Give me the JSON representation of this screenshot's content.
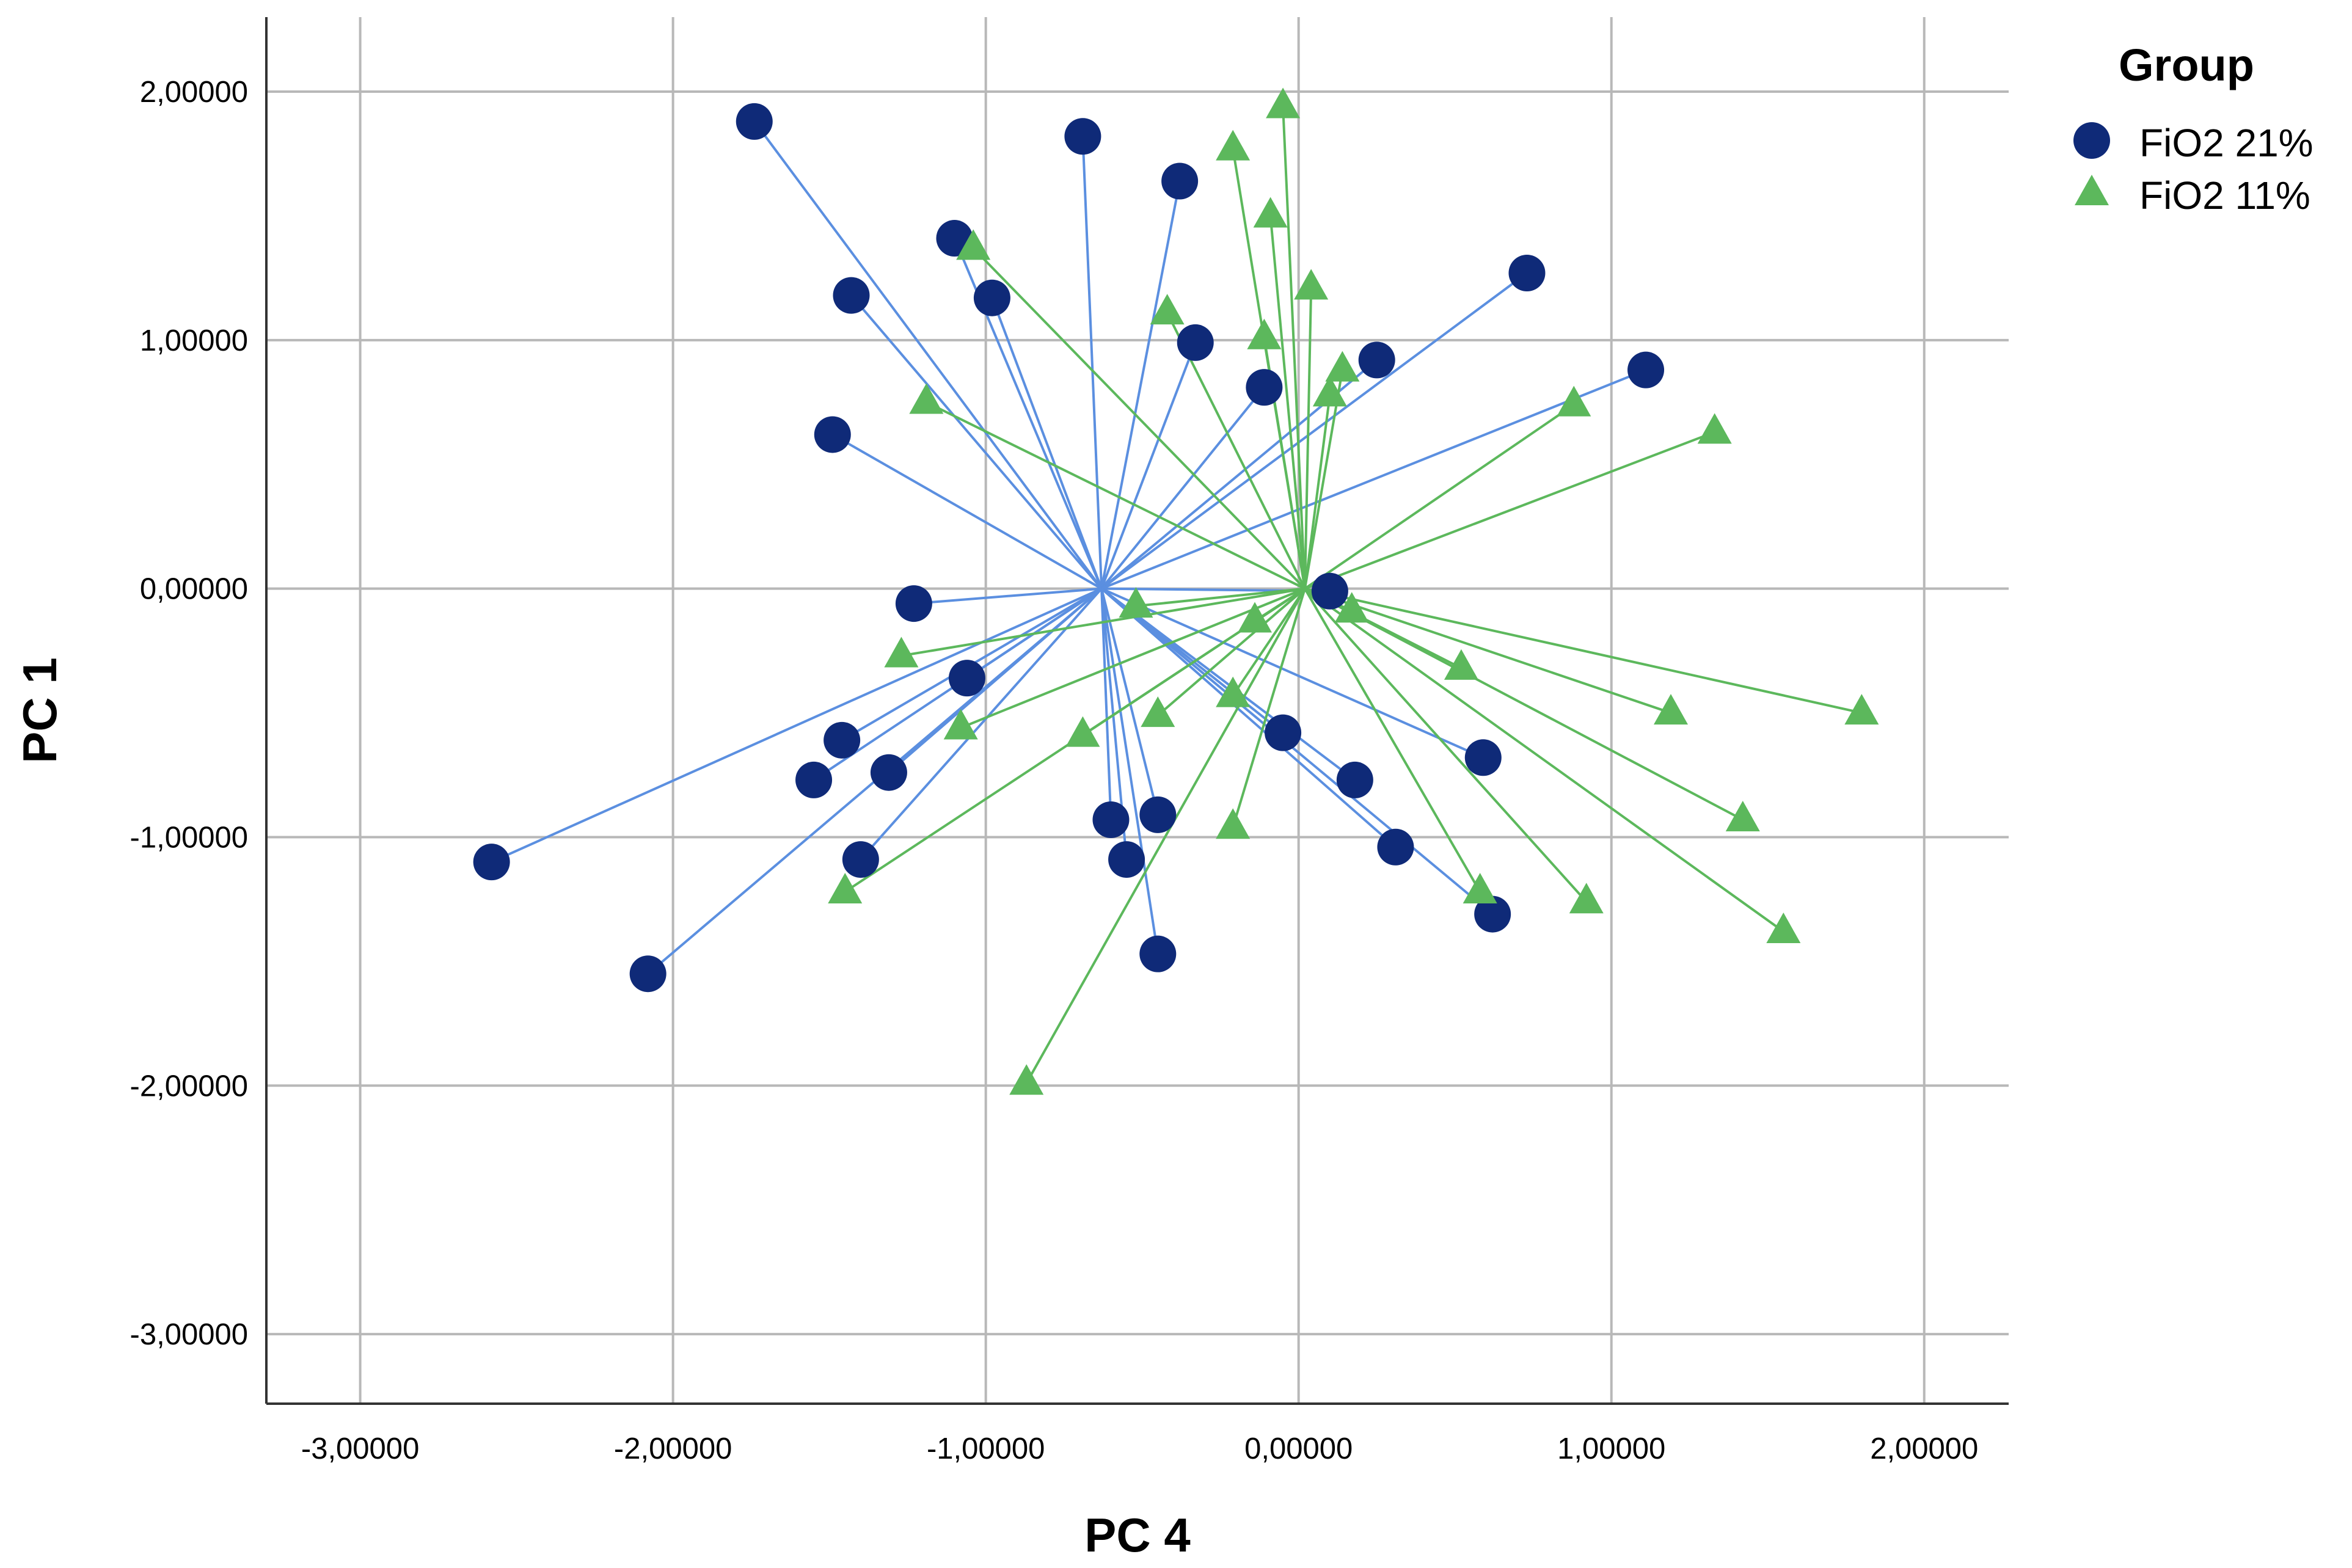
{
  "chart_data": {
    "type": "scatter",
    "xlabel": "PC 4",
    "ylabel": "PC 1",
    "xlim": [
      -3.3,
      2.27
    ],
    "ylim": [
      -3.28,
      2.3
    ],
    "xticks": [
      -3,
      -2,
      -1,
      0,
      1,
      2
    ],
    "yticks": [
      -3,
      -2,
      -1,
      0,
      1,
      2
    ],
    "xtick_labels": [
      "-3,00000",
      "-2,00000",
      "-1,00000",
      "0,00000",
      "1,00000",
      "2,00000"
    ],
    "ytick_labels": [
      "-3,00000",
      "-2,00000",
      "-1,00000",
      "0,00000",
      "1,00000",
      "2,00000"
    ],
    "grid": true,
    "legend": {
      "title": "Group",
      "placement": "top-right"
    },
    "series": [
      {
        "name": "FiO2  21%",
        "marker": "circle",
        "color": "#0f2a78",
        "line_color": "#5b8fe0",
        "centroid": [
          -0.63,
          0.0
        ],
        "points": [
          [
            -1.74,
            1.88
          ],
          [
            -0.69,
            1.82
          ],
          [
            -0.38,
            1.64
          ],
          [
            -1.1,
            1.41
          ],
          [
            -0.98,
            1.17
          ],
          [
            -1.43,
            1.18
          ],
          [
            -0.33,
            0.99
          ],
          [
            -0.11,
            0.81
          ],
          [
            0.25,
            0.92
          ],
          [
            0.73,
            1.27
          ],
          [
            1.11,
            0.88
          ],
          [
            -1.49,
            0.62
          ],
          [
            0.1,
            -0.01
          ],
          [
            -1.23,
            -0.06
          ],
          [
            -1.06,
            -0.36
          ],
          [
            -1.46,
            -0.61
          ],
          [
            -1.55,
            -0.77
          ],
          [
            -1.31,
            -0.74
          ],
          [
            -0.05,
            -0.58
          ],
          [
            0.59,
            -0.68
          ],
          [
            0.18,
            -0.77
          ],
          [
            -0.6,
            -0.93
          ],
          [
            -0.45,
            -0.91
          ],
          [
            -0.55,
            -1.09
          ],
          [
            0.31,
            -1.04
          ],
          [
            -1.4,
            -1.09
          ],
          [
            -2.58,
            -1.1
          ],
          [
            -2.08,
            -1.55
          ],
          [
            -0.45,
            -1.47
          ],
          [
            0.62,
            -1.31
          ]
        ]
      },
      {
        "name": "FiO2 11%",
        "marker": "triangle",
        "color": "#5cb85c",
        "line_color": "#5cb85c",
        "centroid": [
          0.02,
          0.0
        ],
        "points": [
          [
            -0.05,
            1.94
          ],
          [
            -0.21,
            1.77
          ],
          [
            -0.09,
            1.5
          ],
          [
            -1.04,
            1.37
          ],
          [
            0.04,
            1.21
          ],
          [
            -0.42,
            1.11
          ],
          [
            -0.11,
            1.01
          ],
          [
            0.14,
            0.88
          ],
          [
            0.1,
            0.78
          ],
          [
            -1.19,
            0.75
          ],
          [
            0.88,
            0.74
          ],
          [
            1.33,
            0.63
          ],
          [
            -0.52,
            -0.07
          ],
          [
            -0.14,
            -0.13
          ],
          [
            0.17,
            -0.09
          ],
          [
            -1.27,
            -0.27
          ],
          [
            0.52,
            -0.32
          ],
          [
            1.19,
            -0.5
          ],
          [
            1.8,
            -0.5
          ],
          [
            -0.21,
            -0.43
          ],
          [
            -0.45,
            -0.51
          ],
          [
            -1.08,
            -0.56
          ],
          [
            -0.69,
            -0.59
          ],
          [
            1.42,
            -0.93
          ],
          [
            -0.21,
            -0.96
          ],
          [
            -1.45,
            -1.22
          ],
          [
            0.58,
            -1.22
          ],
          [
            0.92,
            -1.26
          ],
          [
            1.55,
            -1.38
          ],
          [
            -0.87,
            -1.99
          ]
        ]
      }
    ]
  }
}
